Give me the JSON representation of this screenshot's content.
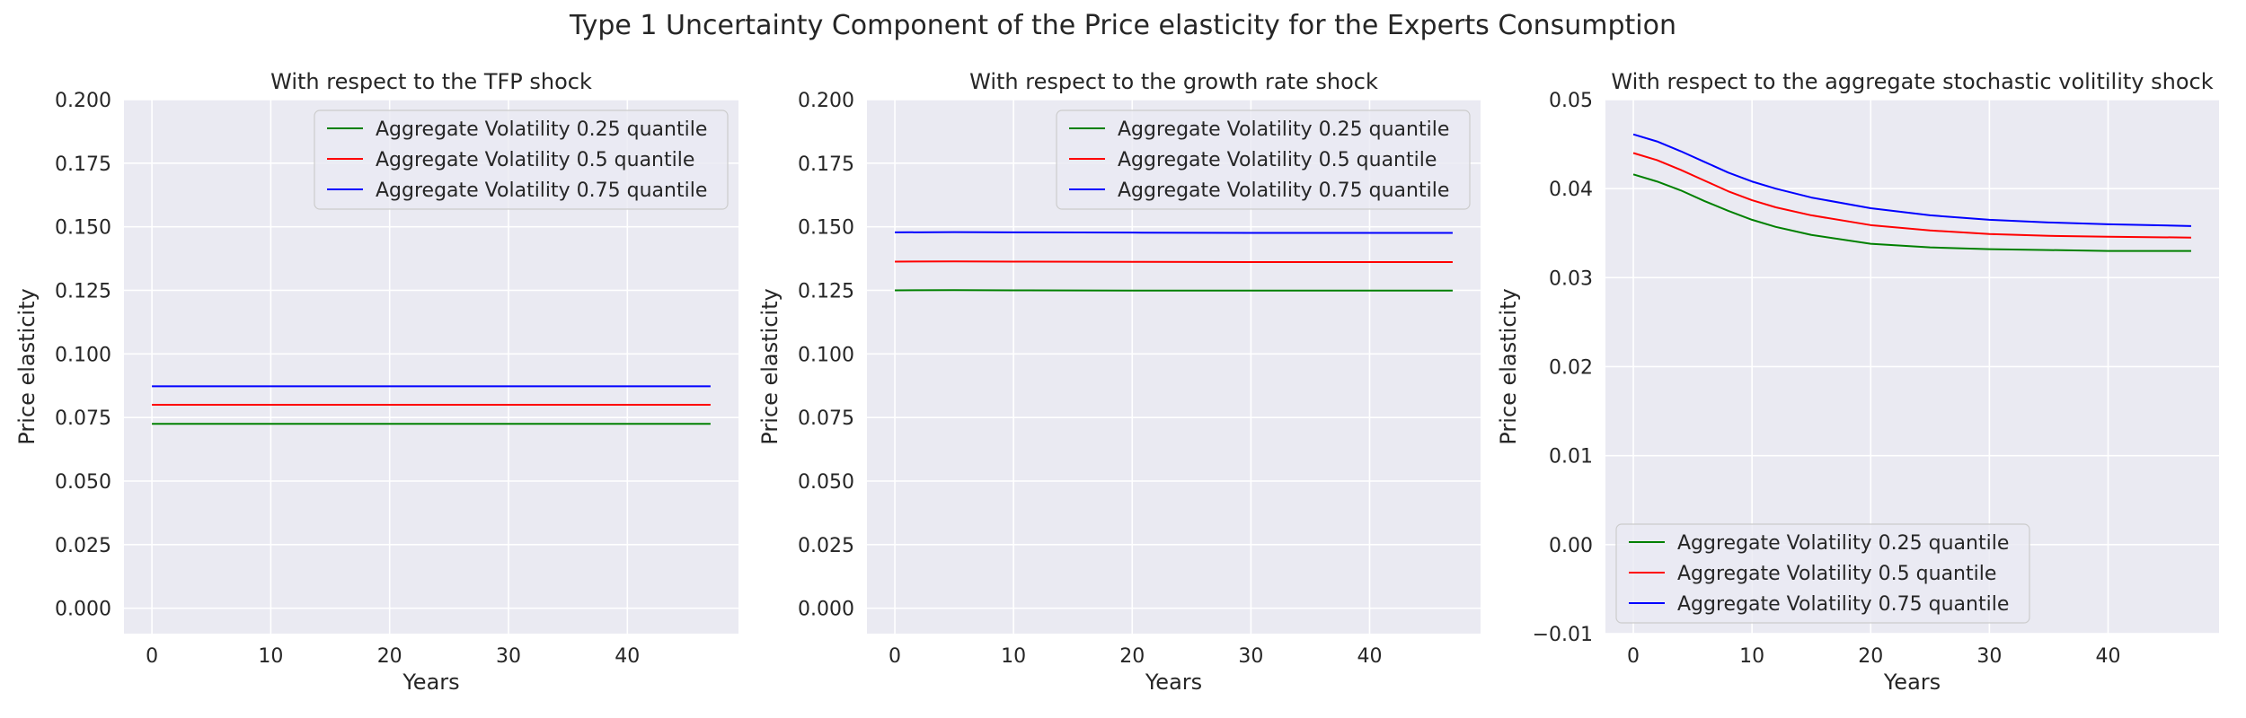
{
  "figure": {
    "title": "Type 1 Uncertainty Component of the Price elasticity for the Experts Consumption"
  },
  "chart_data": [
    {
      "type": "line",
      "title": "With respect to the TFP shock",
      "xlabel": "Years",
      "ylabel": "Price elasticity",
      "xlim": [
        -2.35,
        49.35
      ],
      "ylim": [
        -0.01,
        0.2
      ],
      "xticks": [
        0,
        10,
        20,
        30,
        40
      ],
      "xtick_labels": [
        "0",
        "10",
        "20",
        "30",
        "40"
      ],
      "yticks": [
        0.0,
        0.025,
        0.05,
        0.075,
        0.1,
        0.125,
        0.15,
        0.175,
        0.2
      ],
      "ytick_labels": [
        "0.000",
        "0.025",
        "0.050",
        "0.075",
        "0.100",
        "0.125",
        "0.150",
        "0.175",
        "0.200"
      ],
      "grid": true,
      "legend_position": "upper right",
      "x": [
        0,
        47
      ],
      "series": [
        {
          "name": "Aggregate Volatility 0.25 quantile",
          "color": "#008000",
          "values": [
            0.0725,
            0.0725
          ]
        },
        {
          "name": "Aggregate Volatility 0.5 quantile",
          "color": "#ff0000",
          "values": [
            0.08,
            0.08
          ]
        },
        {
          "name": "Aggregate Volatility 0.75 quantile",
          "color": "#0000ff",
          "values": [
            0.0873,
            0.0873
          ]
        }
      ]
    },
    {
      "type": "line",
      "title": "With respect to the growth rate shock",
      "xlabel": "Years",
      "ylabel": "Price elasticity",
      "xlim": [
        -2.35,
        49.35
      ],
      "ylim": [
        -0.01,
        0.2
      ],
      "xticks": [
        0,
        10,
        20,
        30,
        40
      ],
      "xtick_labels": [
        "0",
        "10",
        "20",
        "30",
        "40"
      ],
      "yticks": [
        0.0,
        0.025,
        0.05,
        0.075,
        0.1,
        0.125,
        0.15,
        0.175,
        0.2
      ],
      "ytick_labels": [
        "0.000",
        "0.025",
        "0.050",
        "0.075",
        "0.100",
        "0.125",
        "0.150",
        "0.175",
        "0.200"
      ],
      "grid": true,
      "legend_position": "upper right",
      "x": [
        0,
        5,
        10,
        20,
        30,
        40,
        47
      ],
      "series": [
        {
          "name": "Aggregate Volatility 0.25 quantile",
          "color": "#008000",
          "values": [
            0.125,
            0.1251,
            0.125,
            0.1249,
            0.1249,
            0.1249,
            0.1249
          ]
        },
        {
          "name": "Aggregate Volatility 0.5 quantile",
          "color": "#ff0000",
          "values": [
            0.1363,
            0.1364,
            0.1363,
            0.1362,
            0.1361,
            0.1361,
            0.1361
          ]
        },
        {
          "name": "Aggregate Volatility 0.75 quantile",
          "color": "#0000ff",
          "values": [
            0.1478,
            0.1479,
            0.1478,
            0.1477,
            0.1476,
            0.1476,
            0.1476
          ]
        }
      ]
    },
    {
      "type": "line",
      "title": "With respect to the aggregate stochastic volitility shock",
      "xlabel": "Years",
      "ylabel": "Price elasticity",
      "xlim": [
        -2.35,
        49.35
      ],
      "ylim": [
        -0.01,
        0.05
      ],
      "xticks": [
        0,
        10,
        20,
        30,
        40
      ],
      "xtick_labels": [
        "0",
        "10",
        "20",
        "30",
        "40"
      ],
      "yticks": [
        -0.01,
        0.0,
        0.01,
        0.02,
        0.03,
        0.04,
        0.05
      ],
      "ytick_labels": [
        "−0.01",
        "0.00",
        "0.01",
        "0.02",
        "0.03",
        "0.04",
        "0.05"
      ],
      "grid": true,
      "legend_position": "lower left",
      "x": [
        0,
        2,
        4,
        6,
        8,
        10,
        12,
        15,
        20,
        25,
        30,
        35,
        40,
        47
      ],
      "series": [
        {
          "name": "Aggregate Volatility 0.25 quantile",
          "color": "#008000",
          "values": [
            0.0416,
            0.0408,
            0.0398,
            0.0386,
            0.0375,
            0.0365,
            0.0357,
            0.0348,
            0.0338,
            0.0334,
            0.0332,
            0.0331,
            0.033,
            0.033
          ]
        },
        {
          "name": "Aggregate Volatility 0.5 quantile",
          "color": "#ff0000",
          "values": [
            0.044,
            0.0432,
            0.0421,
            0.0409,
            0.0397,
            0.0387,
            0.0379,
            0.037,
            0.0359,
            0.0353,
            0.0349,
            0.0347,
            0.0346,
            0.0345
          ]
        },
        {
          "name": "Aggregate Volatility 0.75 quantile",
          "color": "#0000ff",
          "values": [
            0.0461,
            0.0453,
            0.0442,
            0.043,
            0.0418,
            0.0408,
            0.04,
            0.039,
            0.0378,
            0.037,
            0.0365,
            0.0362,
            0.036,
            0.0358
          ]
        }
      ]
    }
  ]
}
